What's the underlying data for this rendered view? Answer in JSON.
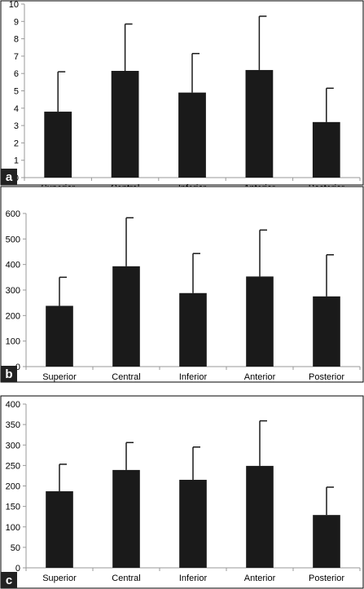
{
  "chart_data": [
    {
      "type": "bar",
      "panel_label": "a",
      "categories": [
        "Superior",
        "Central",
        "Inferior",
        "Anterior",
        "Posterior"
      ],
      "values": [
        3.8,
        6.15,
        4.9,
        6.2,
        3.2
      ],
      "errors": [
        2.3,
        2.7,
        2.25,
        3.1,
        1.95
      ],
      "ylim": [
        0,
        10
      ],
      "yticks": [
        0,
        1,
        2,
        3,
        4,
        5,
        6,
        7,
        8,
        9,
        10
      ],
      "grid": false,
      "colors": {
        "bar": "#1a1a1a"
      }
    },
    {
      "type": "bar",
      "panel_label": "b",
      "categories": [
        "Superior",
        "Central",
        "Inferior",
        "Anterior",
        "Posterior"
      ],
      "values": [
        238,
        393,
        288,
        353,
        275
      ],
      "errors": [
        112,
        190,
        155,
        182,
        163
      ],
      "ylim": [
        0,
        600
      ],
      "yticks": [
        0,
        100,
        200,
        300,
        400,
        500,
        600
      ],
      "grid": false,
      "colors": {
        "bar": "#1a1a1a"
      }
    },
    {
      "type": "bar",
      "panel_label": "c",
      "categories": [
        "Superior",
        "Central",
        "Inferior",
        "Anterior",
        "Posterior"
      ],
      "values": [
        187,
        239,
        215,
        249,
        129
      ],
      "errors": [
        66,
        67,
        80,
        110,
        68
      ],
      "ylim": [
        0,
        400
      ],
      "yticks": [
        0,
        50,
        100,
        150,
        200,
        250,
        300,
        350,
        400
      ],
      "grid": false,
      "colors": {
        "bar": "#1a1a1a"
      }
    }
  ]
}
